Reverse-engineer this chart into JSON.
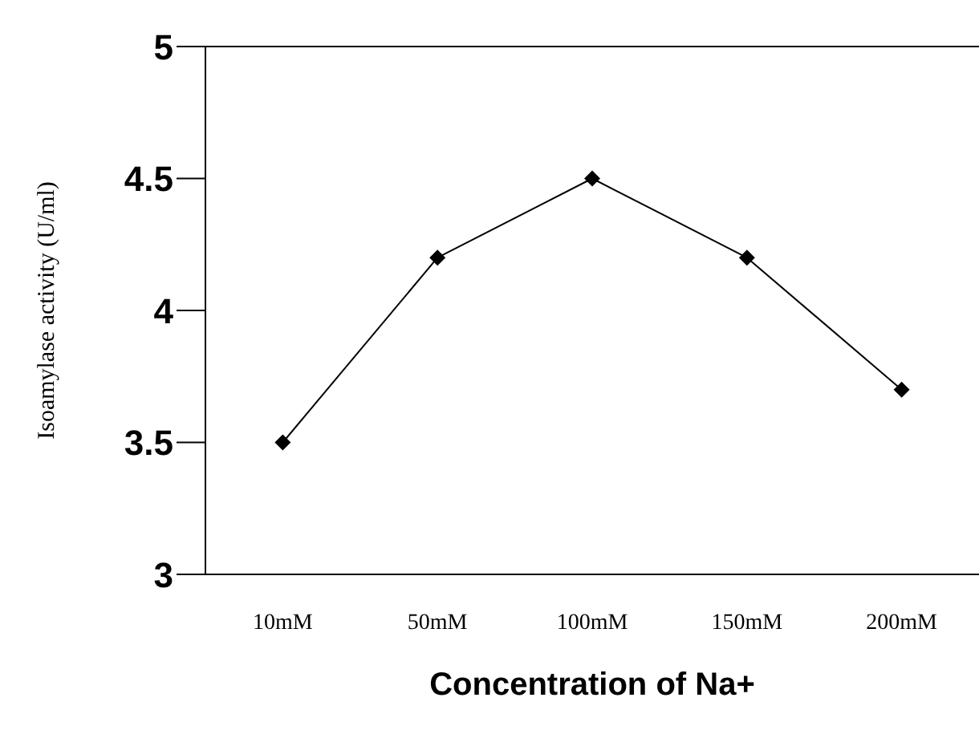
{
  "chart_data": {
    "type": "line",
    "xlabel": "Concentration of Na+",
    "ylabel": "Isoamylase activity (U/ml)",
    "categories": [
      "10mM",
      "50mM",
      "100mM",
      "150mM",
      "200mM"
    ],
    "series": [
      {
        "color": "#000000",
        "values": [
          3.5,
          4.2,
          4.5,
          4.2,
          3.7
        ]
      }
    ],
    "ylim": [
      3,
      5
    ],
    "yticks": [
      3,
      3.5,
      4,
      4.5,
      5
    ],
    "grid": false,
    "legend": false,
    "marker": "diamond",
    "line_style": "solid"
  }
}
